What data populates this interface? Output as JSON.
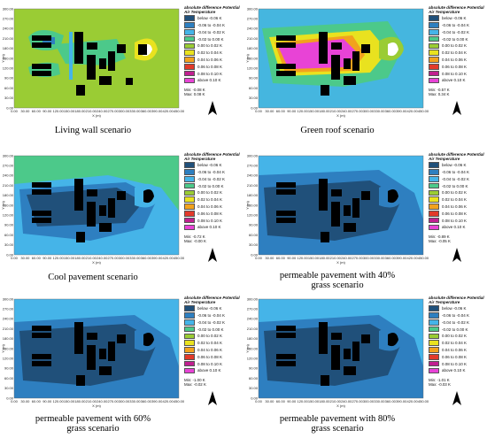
{
  "legend_title": "absolute difference Potential Air Temperature",
  "legend_bins": [
    {
      "label": "below -0.06 K",
      "color": "#20507a"
    },
    {
      "label": "-0.06 to -0.04 K",
      "color": "#2e7fc0"
    },
    {
      "label": "-0.04 to -0.02 K",
      "color": "#45b4e8"
    },
    {
      "label": "-0.02 to 0.00 K",
      "color": "#4cc98a"
    },
    {
      "label": "0.00 to 0.02 K",
      "color": "#9acc34"
    },
    {
      "label": "0.02 to 0.04 K",
      "color": "#e9e21f"
    },
    {
      "label": "0.04 to 0.06 K",
      "color": "#f2a21d"
    },
    {
      "label": "0.06 to 0.08 K",
      "color": "#e23a2a"
    },
    {
      "label": "0.08 to 0.10 K",
      "color": "#c02090"
    },
    {
      "label": "above 0.10 K",
      "color": "#e843d6"
    }
  ],
  "x_ticks": [
    "0.00",
    "30.00",
    "60.00",
    "90.00",
    "120.00",
    "150.00",
    "180.00",
    "210.00",
    "240.00",
    "270.00",
    "300.00",
    "330.00",
    "360.00",
    "390.00",
    "420.00",
    "450.00"
  ],
  "y_ticks": [
    "0.00",
    "30.00",
    "60.00",
    "90.00",
    "120.00",
    "150.00",
    "180.00",
    "210.00",
    "240.00",
    "270.00",
    "300.00"
  ],
  "x_unit": "X (m)",
  "y_unit": "Y (m)",
  "panels": [
    {
      "caption": "Living wall scenario",
      "min": "Min: -0.08 K",
      "max": "Max: 0.08 K",
      "base_color": "#9acc34",
      "scenario": "living-wall"
    },
    {
      "caption": "Green roof scenario",
      "min": "Min: -0.57 K",
      "max": "Max: 0.34 K",
      "base_color": "#4cc98a",
      "scenario": "green-roof"
    },
    {
      "caption": "Cool pavement scenario",
      "min": "Min: -0.72 K",
      "max": "Max: -0.00 K",
      "base_color": "#4cc98a",
      "scenario": "cool-pavement"
    },
    {
      "caption_line1": "permeable pavement with 40%",
      "caption_line2": "grass scenario",
      "min": "Min: -0.89 K",
      "max": "Max: -0.05 K",
      "base_color": "#45b4e8",
      "scenario": "pp40"
    },
    {
      "caption_line1": "permeable pavement with 60%",
      "caption_line2": "grass scenario",
      "min": "Min: -1.00 K",
      "max": "Max: -0.02 K",
      "base_color": "#45b4e8",
      "scenario": "pp60"
    },
    {
      "caption_line1": "permeable pavement with 80%",
      "caption_line2": "grass scenario",
      "min": "Min: -1.01 K",
      "max": "Max: -0.03 K",
      "base_color": "#45b4e8",
      "scenario": "pp80"
    }
  ]
}
